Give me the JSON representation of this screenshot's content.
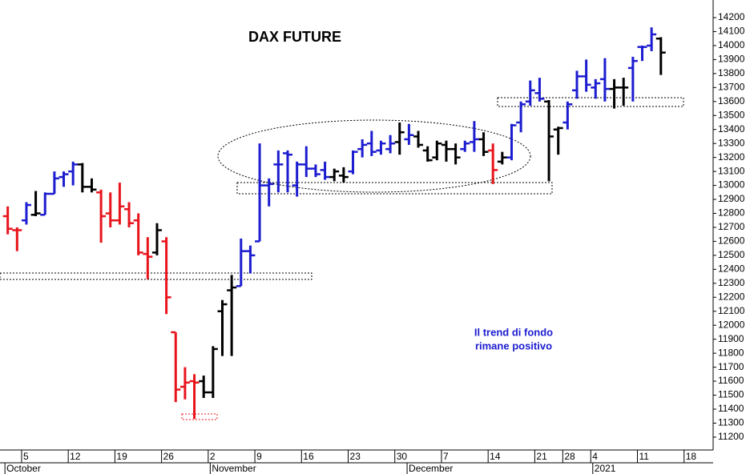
{
  "chart_data": {
    "type": "ohlc",
    "title": "DAX FUTURE",
    "annotations": [
      "Il trend di fondo",
      "rimane positivo"
    ],
    "x": [
      -2,
      -1,
      0,
      1,
      2,
      3,
      4,
      5,
      6,
      7,
      8,
      9,
      10,
      11,
      12,
      13,
      14,
      15,
      16,
      17,
      18,
      19,
      20,
      21,
      22,
      23,
      24,
      25,
      26,
      27,
      28,
      29,
      30,
      31,
      32,
      33,
      34,
      35,
      36,
      37,
      38,
      39,
      40,
      41,
      42,
      43,
      44,
      45,
      46,
      47,
      48,
      49,
      50,
      51,
      52,
      53,
      54,
      55,
      56,
      57,
      58,
      59,
      60,
      61,
      62,
      63,
      64,
      65,
      66,
      67,
      68
    ],
    "open": [
      12780,
      12680,
      12750,
      12790,
      12790,
      12940,
      13060,
      13100,
      13150,
      12990,
      12950,
      12800,
      12750,
      12830,
      12750,
      12510,
      12520,
      12600,
      11950,
      11560,
      11600,
      11600,
      11520,
      12100,
      12250,
      12280,
      12530,
      12600,
      13000,
      13150,
      13230,
      13000,
      13150,
      13120,
      13110,
      13060,
      13070,
      13100,
      13260,
      13300,
      13250,
      13260,
      13310,
      13330,
      13350,
      13250,
      13200,
      13290,
      13260,
      13260,
      13310,
      13330,
      13250,
      13170,
      13200,
      13450,
      13600,
      13660,
      13600,
      13400,
      13450,
      13680,
      13780,
      13700,
      13760,
      13690,
      13700,
      13840,
      13990,
      14000,
      14050
    ],
    "high": [
      12850,
      12700,
      12880,
      12960,
      12950,
      13100,
      13100,
      13170,
      13160,
      13050,
      12970,
      12950,
      13020,
      12880,
      12800,
      12630,
      12730,
      12630,
      11950,
      11700,
      11650,
      11640,
      11850,
      12180,
      12360,
      12620,
      12570,
      13300,
      13050,
      13250,
      13250,
      13170,
      13280,
      13150,
      13170,
      13120,
      13130,
      13250,
      13330,
      13390,
      13320,
      13360,
      13450,
      13440,
      13390,
      13280,
      13320,
      13320,
      13300,
      13320,
      13460,
      13380,
      13300,
      13240,
      13440,
      13600,
      13750,
      13770,
      13610,
      13420,
      13600,
      13820,
      13900,
      13760,
      13910,
      13760,
      13770,
      13920,
      14000,
      14130,
      14060
    ],
    "low": [
      12650,
      12530,
      12720,
      12780,
      12790,
      12940,
      12990,
      13000,
      12950,
      12950,
      12590,
      12700,
      12720,
      12700,
      12500,
      12330,
      12500,
      12080,
      11450,
      11470,
      11330,
      11480,
      11480,
      11780,
      11780,
      12280,
      12370,
      12600,
      12850,
      12950,
      12950,
      12920,
      13060,
      13060,
      13040,
      13030,
      13020,
      13080,
      13200,
      13210,
      13220,
      13230,
      13220,
      13290,
      13270,
      13170,
      13180,
      13170,
      13150,
      13240,
      13240,
      13210,
      13010,
      13150,
      13180,
      13380,
      13570,
      13600,
      13030,
      13220,
      13400,
      13620,
      13670,
      13620,
      13600,
      13550,
      13570,
      13600,
      13890,
      13960,
      13790
    ],
    "close": [
      12690,
      12680,
      12860,
      12800,
      12940,
      13050,
      13080,
      13150,
      12990,
      12970,
      12780,
      12750,
      12850,
      12730,
      12520,
      12490,
      12680,
      12200,
      11540,
      11590,
      11590,
      11520,
      11830,
      12150,
      12270,
      12530,
      12500,
      13000,
      13010,
      13150,
      13220,
      13150,
      13120,
      13080,
      13060,
      13100,
      13060,
      13240,
      13290,
      13240,
      13300,
      13300,
      13380,
      13360,
      13290,
      13180,
      13300,
      13260,
      13200,
      13300,
      13330,
      13240,
      13110,
      13200,
      13430,
      13580,
      13680,
      13620,
      13350,
      13410,
      13580,
      13780,
      13720,
      13730,
      13690,
      13700,
      13700,
      13890,
      13990,
      14080,
      13950
    ],
    "colors": [
      "#e8141c",
      "#e8141c",
      "#1c1cd0",
      "#000000",
      "#1c1cd0",
      "#1c1cd0",
      "#1c1cd0",
      "#1c1cd0",
      "#000000",
      "#000000",
      "#e8141c",
      "#e8141c",
      "#e8141c",
      "#e8141c",
      "#e8141c",
      "#e8141c",
      "#000000",
      "#e8141c",
      "#e8141c",
      "#e8141c",
      "#e8141c",
      "#000000",
      "#000000",
      "#000000",
      "#000000",
      "#1c1cd0",
      "#1c1cd0",
      "#1c1cd0",
      "#1c1cd0",
      "#1c1cd0",
      "#1c1cd0",
      "#1c1cd0",
      "#1c1cd0",
      "#1c1cd0",
      "#1c1cd0",
      "#000000",
      "#000000",
      "#1c1cd0",
      "#1c1cd0",
      "#1c1cd0",
      "#1c1cd0",
      "#1c1cd0",
      "#000000",
      "#1c1cd0",
      "#000000",
      "#000000",
      "#000000",
      "#000000",
      "#000000",
      "#1c1cd0",
      "#1c1cd0",
      "#000000",
      "#e8141c",
      "#000000",
      "#1c1cd0",
      "#1c1cd0",
      "#1c1cd0",
      "#1c1cd0",
      "#000000",
      "#000000",
      "#1c1cd0",
      "#1c1cd0",
      "#1c1cd0",
      "#1c1cd0",
      "#1c1cd0",
      "#000000",
      "#000000",
      "#1c1cd0",
      "#1c1cd0",
      "#1c1cd0",
      "#000000"
    ],
    "xlim": [
      -2.83,
      73.6
    ],
    "ylim": [
      11108,
      14326
    ],
    "yticks": [
      11200,
      11300,
      11400,
      11500,
      11600,
      11700,
      11800,
      11900,
      12000,
      12100,
      12200,
      12300,
      12400,
      12500,
      12600,
      12700,
      12800,
      12900,
      13000,
      13100,
      13200,
      13300,
      13400,
      13500,
      13600,
      13700,
      13800,
      13900,
      14000,
      14100,
      14200
    ],
    "xticks": [
      {
        "value": 0,
        "label": "5"
      },
      {
        "value": 5,
        "label": "12"
      },
      {
        "value": 10,
        "label": "19"
      },
      {
        "value": 15,
        "label": "26"
      },
      {
        "value": 20,
        "label": "2"
      },
      {
        "value": 25,
        "label": "9"
      },
      {
        "value": 30,
        "label": "16"
      },
      {
        "value": 35,
        "label": "23"
      },
      {
        "value": 40,
        "label": "30"
      },
      {
        "value": 45,
        "label": "7"
      },
      {
        "value": 50,
        "label": "14"
      },
      {
        "value": 55,
        "label": "21"
      },
      {
        "value": 58,
        "label": "28"
      },
      {
        "value": 61,
        "label": "4"
      },
      {
        "value": 66,
        "label": "11"
      },
      {
        "value": 71,
        "label": "18"
      }
    ],
    "months": [
      {
        "value": -2.3,
        "label": "October"
      },
      {
        "value": 19.7,
        "label": "November"
      },
      {
        "value": 40.8,
        "label": "December"
      },
      {
        "value": 60.7,
        "label": "2021"
      }
    ]
  }
}
